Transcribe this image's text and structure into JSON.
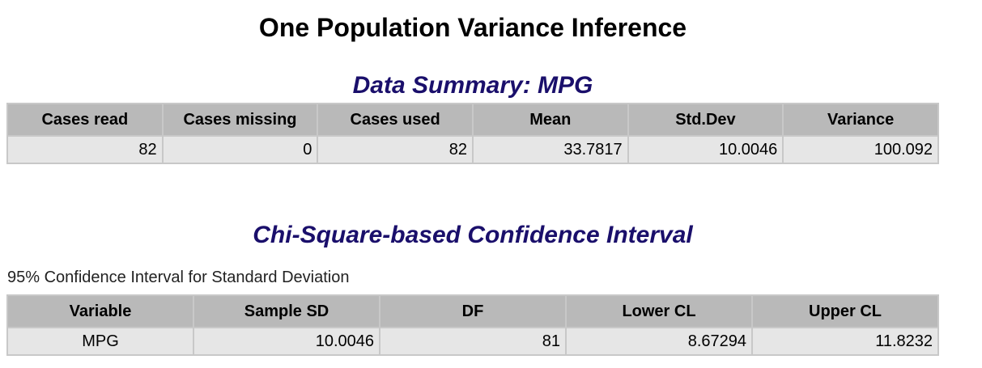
{
  "page": {
    "title": "One Population Variance Inference"
  },
  "summary": {
    "title": "Data Summary: MPG",
    "headers": [
      "Cases read",
      "Cases missing",
      "Cases used",
      "Mean",
      "Std.Dev",
      "Variance"
    ],
    "row": [
      "82",
      "0",
      "82",
      "33.7817",
      "10.0046",
      "100.092"
    ]
  },
  "ci": {
    "title": "Chi-Square-based Confidence Interval",
    "caption": "95% Confidence Interval for Standard Deviation",
    "headers": [
      "Variable",
      "Sample SD",
      "DF",
      "Lower CL",
      "Upper CL"
    ],
    "row": [
      "MPG",
      "10.0046",
      "81",
      "8.67294",
      "11.8232"
    ]
  }
}
